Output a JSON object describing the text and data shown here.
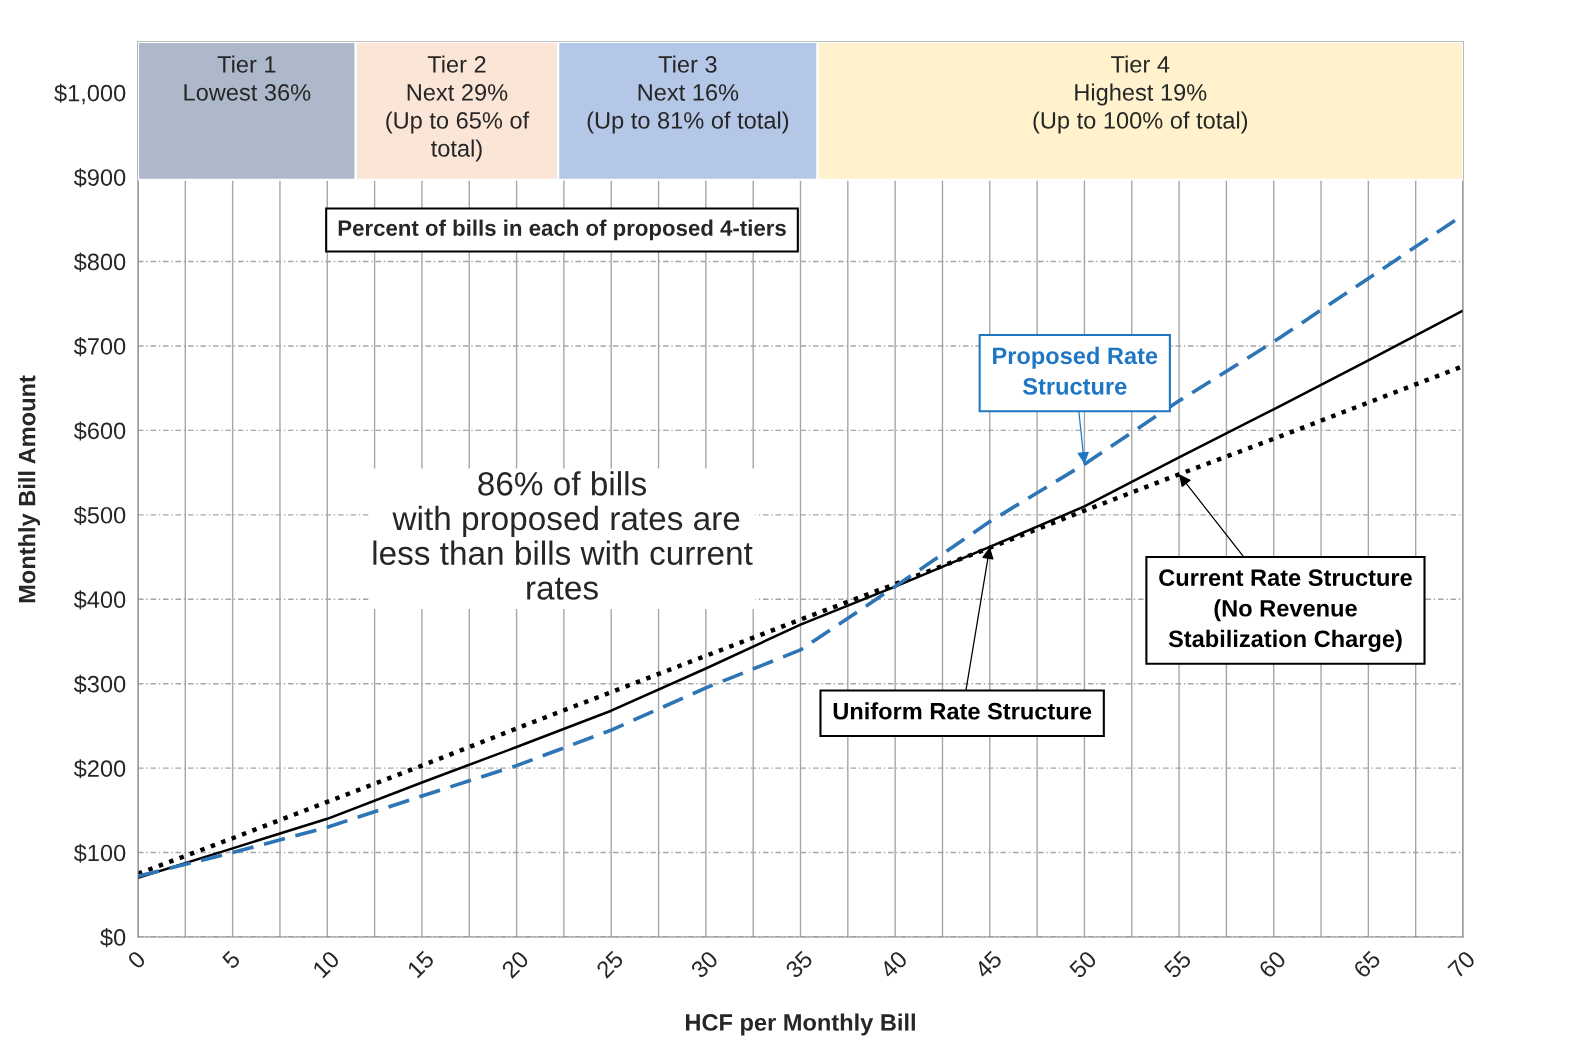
{
  "chart_data": {
    "type": "line",
    "xlabel": "HCF per Monthly Bill",
    "ylabel": "Monthly Bill Amount",
    "x": [
      0,
      5,
      10,
      15,
      20,
      25,
      30,
      35,
      40,
      45,
      50,
      55,
      60,
      65,
      70
    ],
    "series": [
      {
        "color": "#000000",
        "line_style": "dotted",
        "values": [
          75,
          117,
          160,
          203,
          247,
          290,
          333,
          376,
          418,
          461,
          505,
          548,
          590,
          633,
          676
        ]
      },
      {
        "color": "#000000",
        "line_style": "solid",
        "values": [
          70,
          105,
          140,
          183,
          225,
          268,
          318,
          370,
          415,
          462,
          510,
          568,
          625,
          683,
          742
        ]
      },
      {
        "color": "#2e75b6",
        "line_style": "dashed",
        "values": [
          72,
          100,
          130,
          167,
          203,
          245,
          295,
          340,
          415,
          492,
          560,
          635,
          705,
          780,
          855
        ]
      }
    ],
    "xlim": [
      0,
      70
    ],
    "ylim": [
      0,
      1060
    ],
    "xticks": [
      0,
      {
        "value": 2.5,
        "label": null
      },
      5,
      {
        "value": 7.5,
        "label": null
      },
      10,
      {
        "value": 12.5,
        "label": null
      },
      15,
      {
        "value": 17.5,
        "label": null
      },
      20,
      {
        "value": 22.5,
        "label": null
      },
      25,
      {
        "value": 27.5,
        "label": null
      },
      30,
      {
        "value": 32.5,
        "label": null
      },
      35,
      {
        "value": 37.5,
        "label": null
      },
      40,
      {
        "value": 42.5,
        "label": null
      },
      45,
      {
        "value": 47.5,
        "label": null
      },
      50,
      {
        "value": 52.5,
        "label": null
      },
      55,
      {
        "value": 57.5,
        "label": null
      },
      60,
      {
        "value": 62.5,
        "label": null
      },
      65,
      {
        "value": 67.5,
        "label": null
      },
      70
    ],
    "yticks": [
      {
        "value": 0,
        "label": "$0"
      },
      {
        "value": 100,
        "label": "$100"
      },
      {
        "value": 200,
        "label": "$200"
      },
      {
        "value": 300,
        "label": "$300"
      },
      {
        "value": 400,
        "label": "$400"
      },
      {
        "value": 500,
        "label": "$500"
      },
      {
        "value": 600,
        "label": "$600"
      },
      {
        "value": 700,
        "label": "$700"
      },
      {
        "value": 800,
        "label": "$800"
      },
      {
        "value": 900,
        "label": "$900"
      },
      {
        "value": 1000,
        "label": "$1,000"
      }
    ],
    "grid": true,
    "bands": [
      {
        "axis": "x",
        "from": 0,
        "to": 11.5,
        "label": "Tier 1\nLowest 36%",
        "color": "#adb9ca"
      },
      {
        "axis": "x",
        "from": 11.5,
        "to": 22.2,
        "label": "Tier 2\nNext 29%\n(Up to 65% of\ntotal)",
        "color": "#fbe5d6"
      },
      {
        "axis": "x",
        "from": 22.2,
        "to": 35.9,
        "label": "Tier 3\nNext 16%\n(Up to 81% of total)",
        "color": "#b4c7e7"
      },
      {
        "axis": "x",
        "from": 35.9,
        "to": 70,
        "label": "Tier 4\nHighest 19%\n(Up to 100% of total)",
        "color": "#fff2cc"
      }
    ],
    "annotations": [
      "Percent of bills in each of proposed 4-tiers",
      "86% of bills\n with proposed rates are\nless than bills with current\nrates",
      {
        "text": "Proposed Rate\nStructure",
        "x": 50,
        "y": 560
      },
      {
        "text": "Current Rate Structure\n(No Revenue\nStabilization Charge)",
        "x": 55,
        "y": 548
      },
      {
        "text": "Uniform Rate Structure",
        "x": 45,
        "y": 462
      }
    ]
  }
}
